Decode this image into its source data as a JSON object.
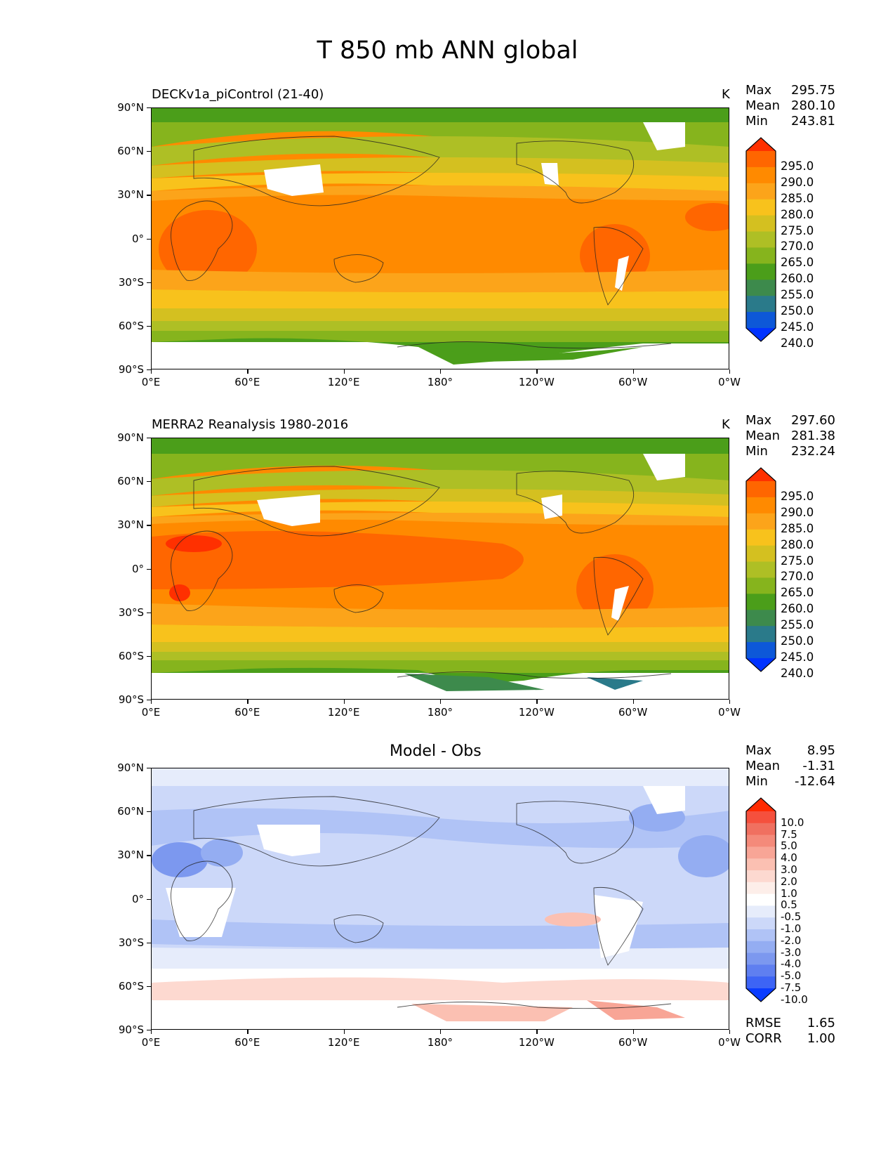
{
  "figure": {
    "title": "T 850 mb ANN global",
    "lon_ticks": [
      "0°E",
      "60°E",
      "120°E",
      "180°",
      "120°W",
      "60°W",
      "0°W"
    ],
    "lat_ticks": [
      "90°N",
      "60°N",
      "30°N",
      "0°",
      "30°S",
      "60°S",
      "90°S"
    ]
  },
  "panels": [
    {
      "name": "model",
      "title": "DECKv1a_piControl (21-40)",
      "units": "K",
      "stats": {
        "max_label": "Max",
        "max": "295.75",
        "mean_label": "Mean",
        "mean": "280.10",
        "min_label": "Min",
        "min": "243.81"
      },
      "colorbar": {
        "labels": [
          "295.0",
          "290.0",
          "285.0",
          "280.0",
          "275.0",
          "270.0",
          "265.0",
          "260.0",
          "255.0",
          "250.0",
          "245.0",
          "240.0"
        ],
        "colors": [
          "#ff3000",
          "#ff6600",
          "#ff8a00",
          "#fca41a",
          "#f8c21c",
          "#d4c020",
          "#aebf25",
          "#86b41d",
          "#4b9e1a",
          "#3d8a4c",
          "#2a7a8a",
          "#0d58d8",
          "#0033ff"
        ]
      }
    },
    {
      "name": "obs",
      "title": "MERRA2 Reanalysis 1980-2016",
      "units": "K",
      "stats": {
        "max_label": "Max",
        "max": "297.60",
        "mean_label": "Mean",
        "mean": "281.38",
        "min_label": "Min",
        "min": "232.24"
      },
      "colorbar": {
        "labels": [
          "295.0",
          "290.0",
          "285.0",
          "280.0",
          "275.0",
          "270.0",
          "265.0",
          "260.0",
          "255.0",
          "250.0",
          "245.0",
          "240.0"
        ],
        "colors": [
          "#ff3000",
          "#ff6600",
          "#ff8a00",
          "#fca41a",
          "#f8c21c",
          "#d4c020",
          "#aebf25",
          "#86b41d",
          "#4b9e1a",
          "#3d8a4c",
          "#2a7a8a",
          "#0d58d8",
          "#0033ff"
        ]
      }
    },
    {
      "name": "diff",
      "title": "Model - Obs",
      "units": "",
      "stats": {
        "max_label": "Max",
        "max": "8.95",
        "mean_label": "Mean",
        "mean": "-1.31",
        "min_label": "Min",
        "min": "-12.64"
      },
      "colorbar": {
        "labels": [
          "10.0",
          "7.5",
          "5.0",
          "4.0",
          "3.0",
          "2.0",
          "1.0",
          "0.5",
          "-0.5",
          "-1.0",
          "-2.0",
          "-3.0",
          "-4.0",
          "-5.0",
          "-7.5",
          "-10.0"
        ],
        "colors": [
          "#ff2a00",
          "#f5503d",
          "#f07060",
          "#f48a7a",
          "#f8a596",
          "#fbc0b2",
          "#fdd9d0",
          "#fdeee9",
          "#ffffff",
          "#e6ecfb",
          "#ccd8f9",
          "#b0c3f6",
          "#94adf2",
          "#7c98ef",
          "#5f7ff0",
          "#3d64f5",
          "#0a3cff"
        ]
      },
      "error_stats": {
        "rmse_label": "RMSE",
        "rmse": "1.65",
        "corr_label": "CORR",
        "corr": "1.00"
      }
    }
  ]
}
